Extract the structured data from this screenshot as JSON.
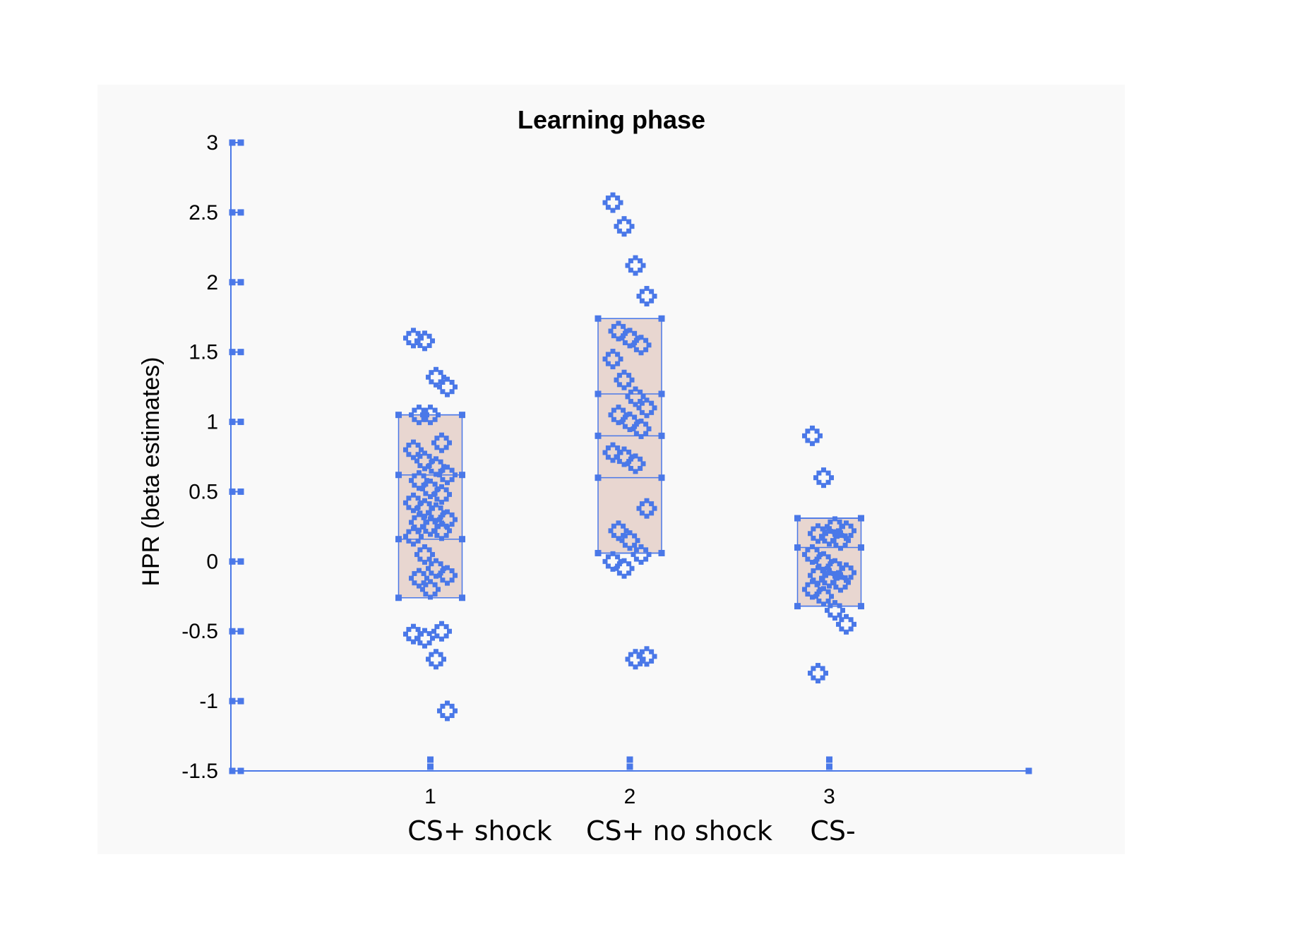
{
  "chart_data": {
    "type": "scatter",
    "title": "Learning phase",
    "ylabel": "HPR (beta estimates)",
    "xlabel": "",
    "ylim": [
      -1.5,
      3
    ],
    "xlim": [
      0,
      4
    ],
    "yticks": [
      "-1.5",
      "-1",
      "-0.5",
      "0",
      "0.5",
      "1",
      "1.5",
      "2",
      "2.5",
      "3"
    ],
    "xticks": [
      "1",
      "2",
      "3"
    ],
    "category_names": [
      "CS+ shock",
      "CS+ no shock",
      "CS-"
    ],
    "colors": {
      "marker": "#4a78e8",
      "box_fill": "#e8d6d0",
      "panel": "#f9f9f9"
    },
    "grid": false,
    "boxes": [
      {
        "x": 1,
        "q1": -0.26,
        "median": 0.16,
        "q3": 0.62,
        "max": 1.05
      },
      {
        "x": 2,
        "q1": 0.06,
        "median": 0.6,
        "q3": 1.2,
        "max": 1.74,
        "upper_line": 0.9
      },
      {
        "x": 3,
        "q1": -0.32,
        "median": 0.1,
        "q3": 0.31,
        "max": 0.31
      }
    ],
    "series": [
      {
        "x": 1,
        "values": [
          1.6,
          1.58,
          1.32,
          1.25,
          1.05,
          1.05,
          0.85,
          0.8,
          0.72,
          0.68,
          0.62,
          0.58,
          0.52,
          0.48,
          0.42,
          0.38,
          0.35,
          0.3,
          0.28,
          0.25,
          0.22,
          0.18,
          0.05,
          -0.05,
          -0.1,
          -0.12,
          -0.2,
          -0.5,
          -0.52,
          -0.55,
          -0.7,
          -1.07
        ]
      },
      {
        "x": 2,
        "values": [
          2.57,
          2.4,
          2.12,
          1.9,
          1.65,
          1.6,
          1.55,
          1.45,
          1.3,
          1.18,
          1.1,
          1.05,
          1.0,
          0.95,
          0.78,
          0.75,
          0.7,
          0.38,
          0.22,
          0.15,
          0.05,
          0.0,
          -0.05,
          -0.7,
          -0.68
        ]
      },
      {
        "x": 3,
        "values": [
          0.9,
          0.6,
          0.25,
          0.22,
          0.2,
          0.18,
          0.15,
          0.05,
          0.0,
          -0.05,
          -0.08,
          -0.1,
          -0.12,
          -0.15,
          -0.2,
          -0.25,
          -0.35,
          -0.45,
          -0.8
        ]
      }
    ]
  }
}
